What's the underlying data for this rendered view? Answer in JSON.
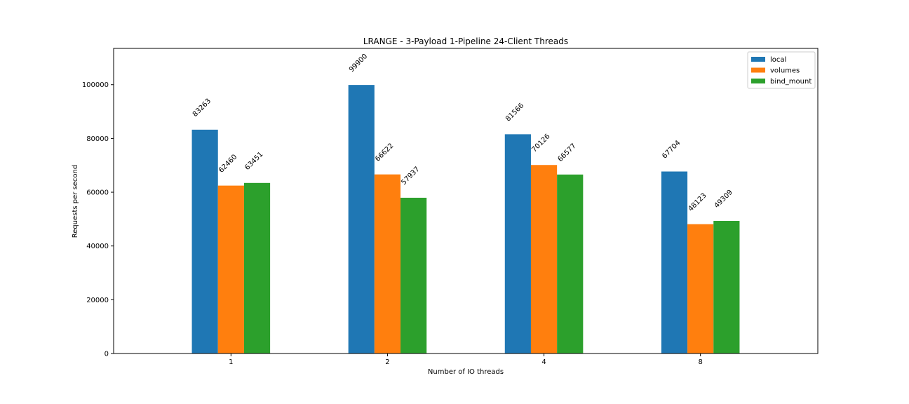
{
  "chart_data": {
    "type": "bar",
    "title": "LRANGE - 3-Payload 1-Pipeline 24-Client Threads",
    "xlabel": "Number of IO threads",
    "ylabel": "Requests per second",
    "categories": [
      "1",
      "2",
      "4",
      "8"
    ],
    "series": [
      {
        "name": "local",
        "color": "#1f77b4",
        "values": [
          83263,
          99900,
          81566,
          67704
        ]
      },
      {
        "name": "volumes",
        "color": "#ff7f0e",
        "values": [
          62460,
          66622,
          70126,
          48123
        ]
      },
      {
        "name": "bind_mount",
        "color": "#2ca02c",
        "values": [
          63451,
          57937,
          66577,
          49309
        ]
      }
    ],
    "ylim": [
      0,
      113500
    ],
    "yticks": [
      0,
      20000,
      40000,
      60000,
      80000,
      100000
    ],
    "grid": false,
    "legend_position": "top-right"
  }
}
